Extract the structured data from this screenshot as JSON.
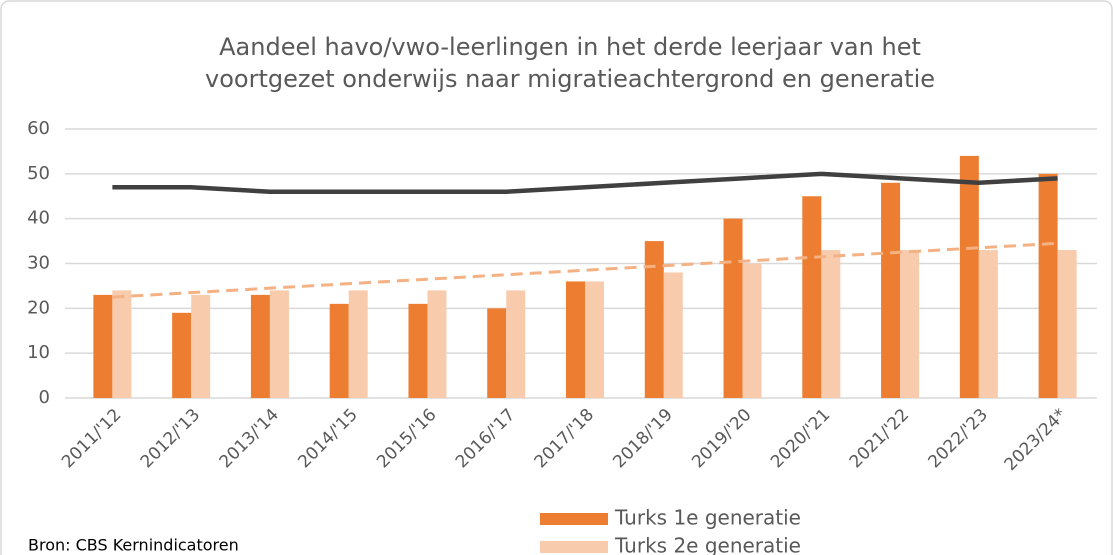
{
  "chart_data": {
    "type": "bar",
    "title": [
      "Aandeel havo/vwo-leerlingen in het derde leerjaar van het",
      "voortgezet onderwijs naar migratieachtergrond en generatie"
    ],
    "categories": [
      "2011/'12",
      "2012/'13",
      "2013/'14",
      "2014/'15",
      "2015/'16",
      "2016/'17",
      "2017/'18",
      "2018/'19",
      "2019/'20",
      "2020/'21",
      "2021/'22",
      "2022/'23",
      "2023/24*"
    ],
    "series": [
      {
        "name": "Turks 1e generatie",
        "color": "#ed7d31",
        "type": "bar",
        "values": [
          23,
          19,
          23,
          21,
          21,
          20,
          26,
          35,
          40,
          45,
          48,
          54,
          50
        ]
      },
      {
        "name": "Turks 2e generatie",
        "color": "#f8cbad",
        "type": "bar",
        "values": [
          24,
          23,
          24,
          24,
          24,
          24,
          26,
          28,
          30,
          33,
          33,
          33,
          33
        ]
      },
      {
        "color": "#404040",
        "type": "line",
        "values": [
          47,
          47,
          46,
          46,
          46,
          46,
          47,
          48,
          49,
          50,
          49,
          48,
          49
        ]
      },
      {
        "color": "#f4b183",
        "type": "line",
        "dashed": true,
        "values": [
          22.5,
          23.5,
          24.5,
          25.5,
          26.5,
          27.5,
          28.5,
          29.5,
          30.5,
          31.5,
          32.5,
          33.5,
          34.5
        ]
      }
    ],
    "ylim": [
      0,
      60
    ],
    "yticks": [
      0,
      10,
      20,
      30,
      40,
      50,
      60
    ],
    "grid": true,
    "source": "Bron: CBS Kernindicatoren"
  }
}
